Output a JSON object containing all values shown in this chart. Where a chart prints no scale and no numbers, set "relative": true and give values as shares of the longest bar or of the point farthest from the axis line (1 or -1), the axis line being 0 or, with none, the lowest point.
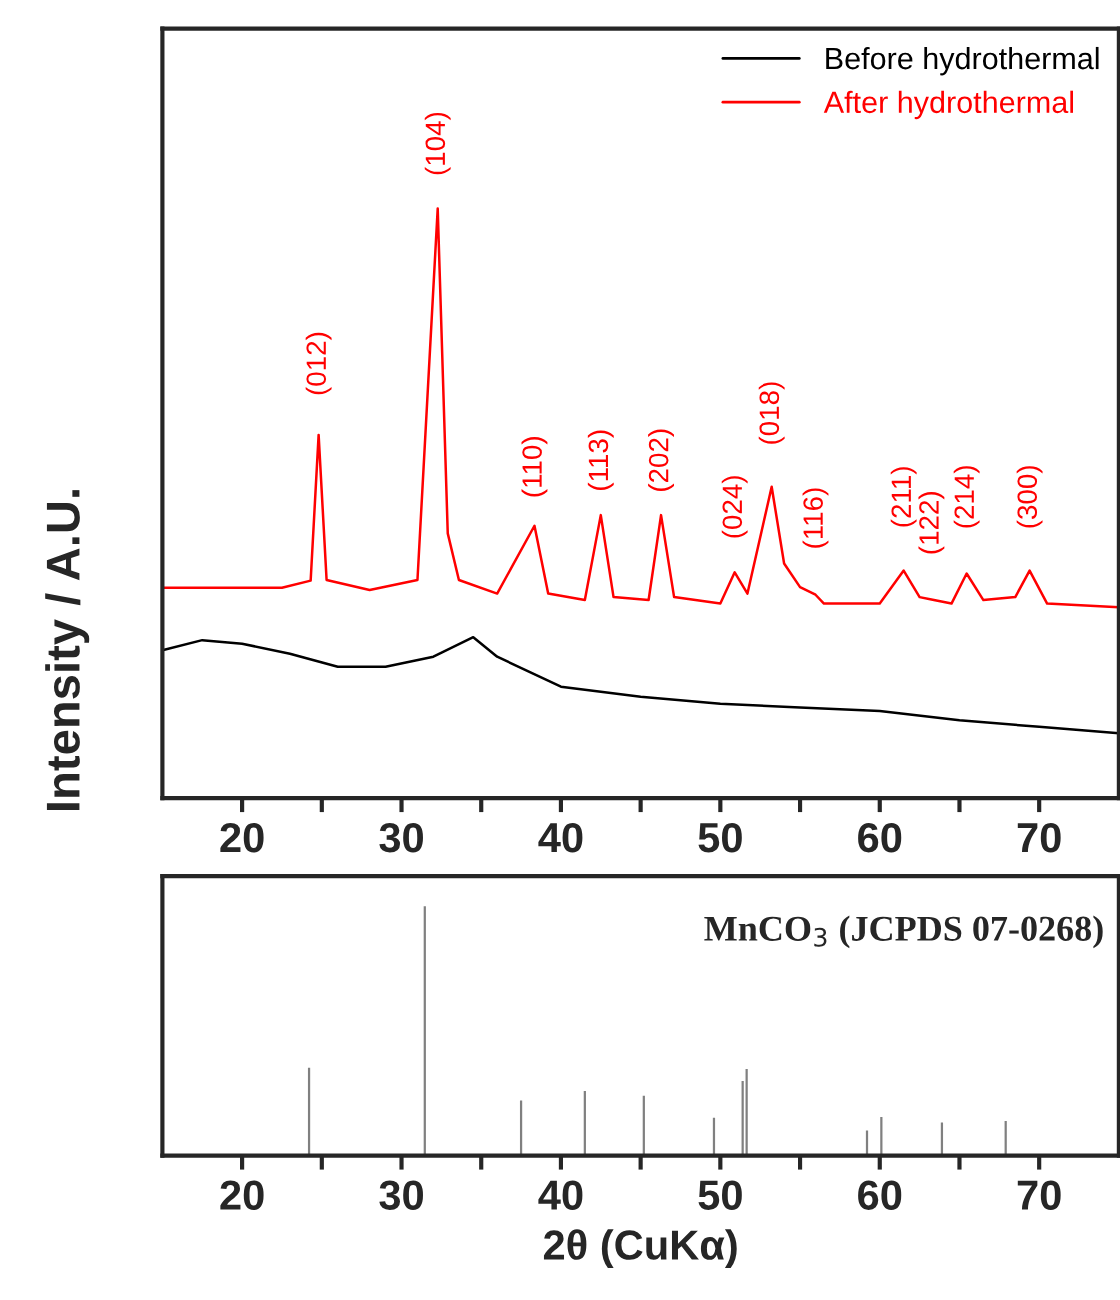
{
  "chart_data": [
    {
      "type": "line",
      "relative": true,
      "ylabel": "Intensity / A.U.",
      "xlim": [
        15,
        75
      ],
      "xticks": [
        20,
        {
          "value": 25,
          "label": null
        },
        30,
        {
          "value": 35,
          "label": null
        },
        40,
        {
          "value": 45,
          "label": null
        },
        50,
        {
          "value": 55,
          "label": null
        },
        60,
        {
          "value": 65,
          "label": null
        },
        70
      ],
      "tick_labels": "x",
      "legend": "top right",
      "grid": false,
      "series": [
        {
          "name": "Before hydrothermal",
          "color": "#000000",
          "x": [
            15,
            17.5,
            20,
            23,
            26,
            29,
            32,
            34.5,
            36,
            40,
            45,
            50,
            55,
            60,
            65,
            70,
            75
          ],
          "values": [
            0.251,
            0.268,
            0.262,
            0.245,
            0.223,
            0.223,
            0.24,
            0.273,
            0.24,
            0.189,
            0.172,
            0.16,
            0.154,
            0.148,
            0.132,
            0.121,
            0.11
          ]
        },
        {
          "name": "After hydrothermal",
          "color": "#ff0000",
          "x": [
            15,
            22.5,
            24.3,
            24.8,
            25.3,
            28,
            31,
            32.27,
            32.9,
            33.6,
            36,
            38.34,
            39.2,
            41.5,
            42.5,
            43.3,
            45.5,
            46.28,
            47.1,
            50,
            50.9,
            51.7,
            53.22,
            54,
            55,
            55.97,
            56.5,
            60,
            61.5,
            62.5,
            63.24,
            64.5,
            65.45,
            66.5,
            68.5,
            69.4,
            70.5,
            75
          ],
          "values": [
            0.357,
            0.357,
            0.369,
            0.616,
            0.37,
            0.353,
            0.37,
            1.0,
            0.449,
            0.37,
            0.347,
            0.462,
            0.347,
            0.336,
            0.48,
            0.341,
            0.336,
            0.48,
            0.341,
            0.33,
            0.383,
            0.347,
            0.528,
            0.398,
            0.358,
            0.345,
            0.33,
            0.33,
            0.386,
            0.341,
            0.337,
            0.33,
            0.381,
            0.336,
            0.341,
            0.386,
            0.33,
            0.324
          ]
        }
      ],
      "annotations": [
        {
          "text": "(012)",
          "x": 24.8,
          "y": 0.616
        },
        {
          "text": "(104)",
          "x": 32.27,
          "y": 1.0
        },
        {
          "text": "(110)",
          "x": 38.34,
          "y": 0.462
        },
        {
          "text": "(113)",
          "x": 42.5,
          "y": 0.48
        },
        {
          "text": "(202)",
          "x": 46.28,
          "y": 0.48
        },
        {
          "text": "(024)",
          "x": 50.9,
          "y": 0.383
        },
        {
          "text": "(018)",
          "x": 53.22,
          "y": 0.528
        },
        {
          "text": "(116)",
          "x": 55.97,
          "y": 0.345
        },
        {
          "text": "(211)",
          "x": 61.5,
          "y": 0.386
        },
        {
          "text": "(122)",
          "x": 63.24,
          "y": 0.337
        },
        {
          "text": "(214)",
          "x": 65.45,
          "y": 0.381
        },
        {
          "text": "(300)",
          "x": 69.4,
          "y": 0.386
        }
      ]
    },
    {
      "type": "bar",
      "relative": true,
      "xlabel": "2θ (CuKα)",
      "xlim": [
        15,
        75
      ],
      "xticks": [
        20,
        {
          "value": 25,
          "label": null
        },
        30,
        {
          "value": 35,
          "label": null
        },
        40,
        {
          "value": 45,
          "label": null
        },
        50,
        {
          "value": 55,
          "label": null
        },
        60,
        {
          "value": 65,
          "label": null
        },
        70
      ],
      "tick_labels": "x",
      "color": "#808080",
      "x": [
        24.2,
        31.46,
        37.5,
        41.5,
        45.2,
        49.6,
        51.4,
        51.65,
        59.2,
        60.1,
        63.9,
        67.9
      ],
      "values": [
        0.352,
        1.0,
        0.221,
        0.259,
        0.24,
        0.152,
        0.299,
        0.347,
        0.101,
        0.155,
        0.133,
        0.139
      ],
      "annotations": [
        "MnCO$_{3}$ (JCPDS 07-0268)"
      ]
    }
  ]
}
